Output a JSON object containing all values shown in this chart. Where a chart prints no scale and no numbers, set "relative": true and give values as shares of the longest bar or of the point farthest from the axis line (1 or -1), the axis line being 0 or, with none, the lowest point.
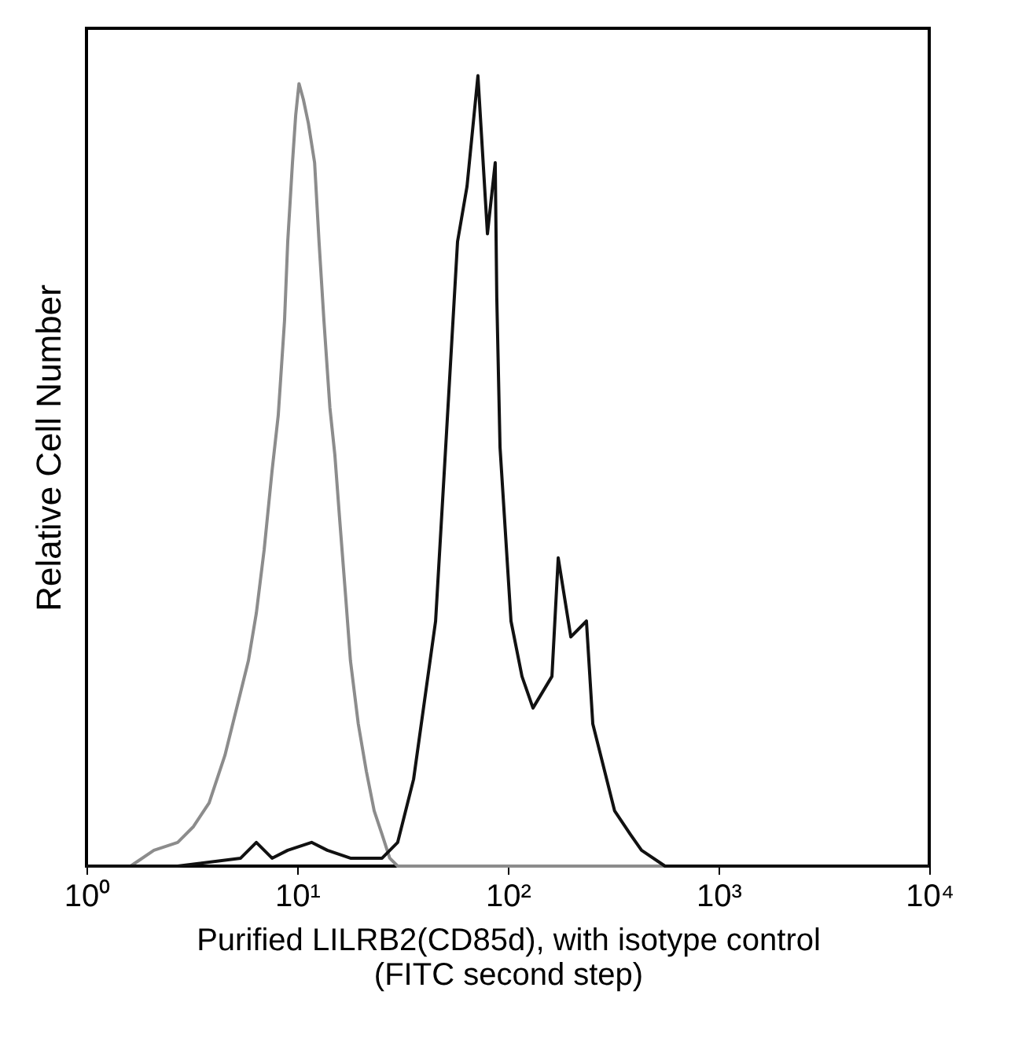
{
  "chart_data": {
    "type": "line",
    "relative": true,
    "xlabel": "Purified LILRB2(CD85d), with isotype control\n(FITC second step)",
    "ylabel": "Relative Cell Number",
    "log": "x",
    "xlim": [
      1,
      10000
    ],
    "xticks": [
      {
        "value": 1,
        "label": "10⁰"
      },
      {
        "value": 10,
        "label": "10¹"
      },
      {
        "value": 100,
        "label": "10²"
      },
      {
        "value": 1000,
        "label": "10³"
      },
      {
        "value": 10000,
        "label": "10⁴"
      }
    ],
    "grid": false,
    "legend": false,
    "marker": "none",
    "line_style": "solid",
    "series": [
      {
        "color": "#8c8c8c",
        "x": [
          1,
          1.62,
          2.09,
          2.71,
          3.22,
          3.82,
          4.54,
          5.39,
          5.87,
          6.4,
          6.97,
          7.6,
          8.13,
          8.71,
          9.02,
          9.5,
          9.84,
          10.2,
          10.7,
          11.3,
          12.1,
          12.7,
          13.4,
          14.3,
          15.1,
          15.9,
          17.0,
          17.9,
          19.5,
          21.3,
          23.2,
          25.3,
          27.5,
          30.0,
          84,
          10000
        ],
        "values": [
          0.0,
          0.0,
          0.02,
          0.03,
          0.05,
          0.08,
          0.14,
          0.22,
          0.26,
          0.32,
          0.4,
          0.5,
          0.57,
          0.69,
          0.79,
          0.89,
          0.95,
          0.99,
          0.97,
          0.94,
          0.89,
          0.79,
          0.69,
          0.58,
          0.52,
          0.44,
          0.34,
          0.26,
          0.18,
          0.12,
          0.07,
          0.04,
          0.01,
          0.0,
          0.0,
          0.0
        ]
      },
      {
        "color": "#111111",
        "x": [
          1,
          2.71,
          5.39,
          6.4,
          7.6,
          9.02,
          11.7,
          13.9,
          17.9,
          25.3,
          30.0,
          35.7,
          45.4,
          51.2,
          57.7,
          64.0,
          72.1,
          80.0,
          87.1,
          88.6,
          91.8,
          103.5,
          116.7,
          131.6,
          161.9,
          173.4,
          199,
          236,
          253,
          321,
          382,
          431,
          557,
          1109,
          10000
        ],
        "values": [
          0.0,
          0.0,
          0.01,
          0.03,
          0.01,
          0.02,
          0.03,
          0.02,
          0.01,
          0.01,
          0.03,
          0.11,
          0.31,
          0.55,
          0.79,
          0.86,
          1.0,
          0.8,
          0.89,
          0.72,
          0.53,
          0.31,
          0.24,
          0.2,
          0.24,
          0.39,
          0.29,
          0.31,
          0.18,
          0.07,
          0.04,
          0.02,
          0.0,
          0.0,
          0.0
        ]
      }
    ]
  }
}
